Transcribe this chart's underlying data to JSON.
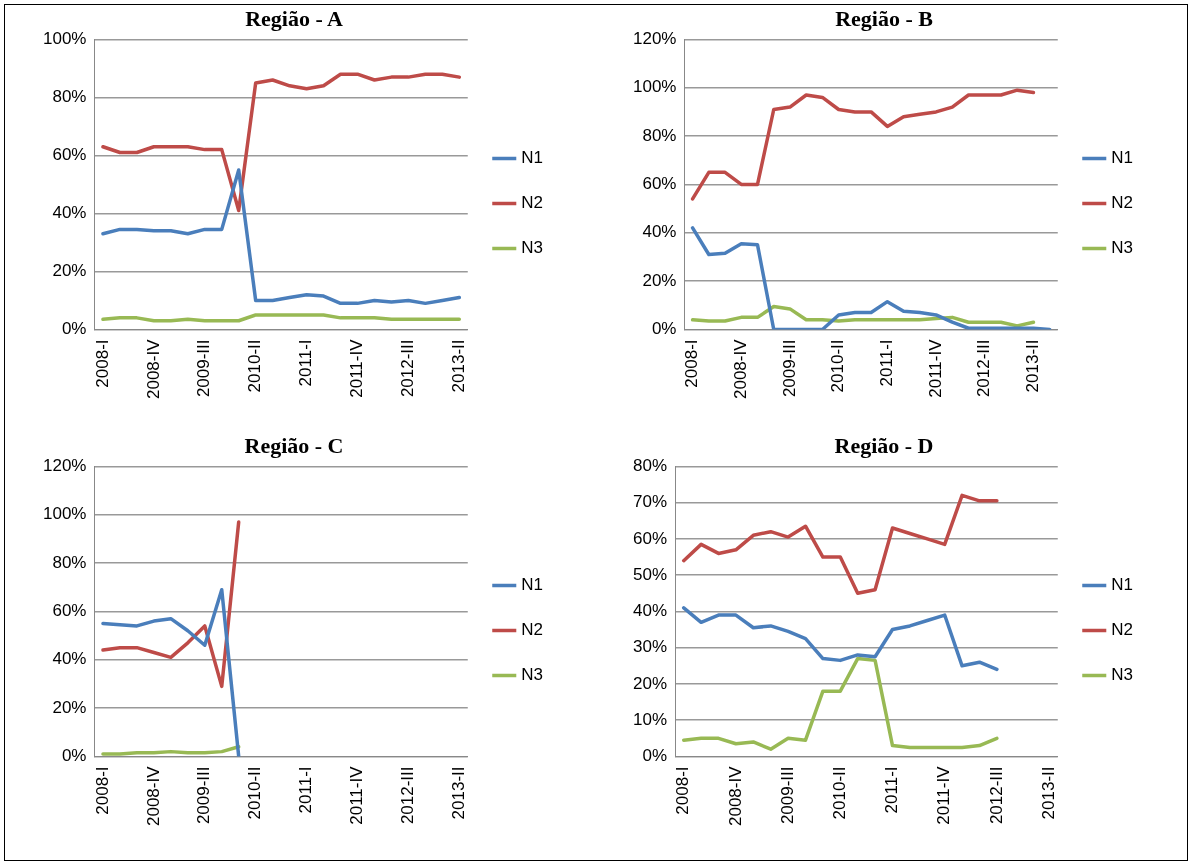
{
  "chart_data": [
    {
      "type": "line",
      "title": "Região - A",
      "categories": [
        "2008-I",
        null,
        null,
        "2008-IV",
        null,
        null,
        "2009-III",
        null,
        null,
        "2010-II",
        null,
        null,
        "2011-I",
        null,
        null,
        "2011-IV",
        null,
        null,
        "2012-III",
        null,
        null,
        "2013-II"
      ],
      "ylim": [
        0,
        100
      ],
      "yticks": [
        {
          "value": 0,
          "label": "0%"
        },
        {
          "value": 20,
          "label": "20%"
        },
        {
          "value": 40,
          "label": "40%"
        },
        {
          "value": 60,
          "label": "60%"
        },
        {
          "value": 80,
          "label": "80%"
        },
        {
          "value": 100,
          "label": "100%"
        }
      ],
      "grid": "y",
      "legend": "right",
      "marker": "none",
      "line_style": "solid",
      "series": [
        {
          "name": "N1",
          "color": "#4a7ebb",
          "values": [
            33,
            34.5,
            34.5,
            34,
            34,
            33,
            34.5,
            34.5,
            55,
            10,
            10,
            11,
            12,
            11.5,
            9,
            9,
            10,
            9.5,
            10,
            9,
            10,
            11
          ]
        },
        {
          "name": "N2",
          "color": "#be4b48",
          "values": [
            63,
            61,
            61,
            63,
            63,
            63,
            62,
            62,
            41,
            85,
            86,
            84,
            83,
            84,
            88,
            88,
            86,
            87,
            87,
            88,
            88,
            87
          ]
        },
        {
          "name": "N3",
          "color": "#98b954",
          "values": [
            3.5,
            4,
            4,
            3,
            3,
            3.5,
            3,
            3,
            3,
            5,
            5,
            5,
            5,
            5,
            4,
            4,
            4,
            3.5,
            3.5,
            3.5,
            3.5,
            3.5
          ]
        }
      ]
    },
    {
      "type": "line",
      "title": "Região - B",
      "categories": [
        "2008-I",
        null,
        null,
        "2008-IV",
        null,
        null,
        "2009-III",
        null,
        null,
        "2010-II",
        null,
        null,
        "2011-I",
        null,
        null,
        "2011-IV",
        null,
        null,
        "2012-III",
        null,
        null,
        "2013-II",
        null
      ],
      "ylim": [
        0,
        120
      ],
      "yticks": [
        {
          "value": 0,
          "label": "0%"
        },
        {
          "value": 20,
          "label": "20%"
        },
        {
          "value": 40,
          "label": "40%"
        },
        {
          "value": 60,
          "label": "60%"
        },
        {
          "value": 80,
          "label": "80%"
        },
        {
          "value": 100,
          "label": "100%"
        },
        {
          "value": 120,
          "label": "120%"
        }
      ],
      "grid": "y",
      "legend": "right",
      "marker": "none",
      "line_style": "solid",
      "series": [
        {
          "name": "N1",
          "color": "#4a7ebb",
          "values": [
            42,
            31,
            31.5,
            35.5,
            35,
            0,
            0,
            0,
            0,
            6,
            7,
            7,
            11.5,
            7.5,
            7,
            6,
            3,
            0.5,
            0.5,
            0.5,
            0.5,
            0.5,
            0
          ]
        },
        {
          "name": "N2",
          "color": "#be4b48",
          "values": [
            54,
            65,
            65,
            60,
            60,
            91,
            92,
            97,
            96,
            91,
            90,
            90,
            84,
            88,
            89,
            90,
            92,
            97,
            97,
            97,
            99,
            98,
            null
          ]
        },
        {
          "name": "N3",
          "color": "#98b954",
          "values": [
            4,
            3.5,
            3.5,
            5,
            5,
            9.5,
            8.5,
            4,
            4,
            3.5,
            4,
            4,
            4,
            4,
            4,
            4.5,
            5,
            3,
            3,
            3,
            1.5,
            3,
            null
          ]
        }
      ]
    },
    {
      "type": "line",
      "title": "Região - C",
      "categories": [
        "2008-I",
        null,
        null,
        "2008-IV",
        null,
        null,
        "2009-III",
        null,
        null,
        "2010-II",
        null,
        null,
        "2011-I",
        null,
        null,
        "2011-IV",
        null,
        null,
        "2012-III",
        null,
        null,
        "2013-II"
      ],
      "ylim": [
        0,
        120
      ],
      "yticks": [
        {
          "value": 0,
          "label": "0%"
        },
        {
          "value": 20,
          "label": "20%"
        },
        {
          "value": 40,
          "label": "40%"
        },
        {
          "value": 60,
          "label": "60%"
        },
        {
          "value": 80,
          "label": "80%"
        },
        {
          "value": 100,
          "label": "100%"
        },
        {
          "value": 120,
          "label": "120%"
        }
      ],
      "grid": "y",
      "legend": "right",
      "marker": "none",
      "line_style": "solid",
      "series": [
        {
          "name": "N1",
          "color": "#4a7ebb",
          "values": [
            55,
            54.5,
            54,
            56,
            57,
            52,
            46,
            69,
            0,
            null,
            null,
            null,
            null,
            null,
            null,
            null,
            null,
            null,
            null,
            null,
            null,
            null
          ]
        },
        {
          "name": "N2",
          "color": "#be4b48",
          "values": [
            44,
            45,
            45,
            43,
            41,
            47,
            54,
            29,
            97,
            null,
            null,
            null,
            null,
            null,
            null,
            null,
            null,
            null,
            null,
            null,
            null,
            null
          ]
        },
        {
          "name": "N3",
          "color": "#98b954",
          "values": [
            1,
            1,
            1.5,
            1.5,
            2,
            1.5,
            1.5,
            2,
            4,
            null,
            null,
            null,
            null,
            null,
            null,
            null,
            null,
            null,
            null,
            null,
            null,
            null
          ]
        }
      ]
    },
    {
      "type": "line",
      "title": "Região - D",
      "categories": [
        "2008-I",
        null,
        null,
        "2008-IV",
        null,
        null,
        "2009-III",
        null,
        null,
        "2010-II",
        null,
        null,
        "2011-I",
        null,
        null,
        "2011-IV",
        null,
        null,
        "2012-III",
        null,
        null,
        "2013-II"
      ],
      "ylim": [
        0,
        80
      ],
      "yticks": [
        {
          "value": 0,
          "label": "0%"
        },
        {
          "value": 10,
          "label": "10%"
        },
        {
          "value": 20,
          "label": "20%"
        },
        {
          "value": 30,
          "label": "30%"
        },
        {
          "value": 40,
          "label": "40%"
        },
        {
          "value": 50,
          "label": "50%"
        },
        {
          "value": 60,
          "label": "60%"
        },
        {
          "value": 70,
          "label": "70%"
        },
        {
          "value": 80,
          "label": "80%"
        }
      ],
      "grid": "y",
      "legend": "right",
      "marker": "none",
      "line_style": "solid",
      "series": [
        {
          "name": "N1",
          "color": "#4a7ebb",
          "values": [
            41,
            37,
            39,
            39,
            35.5,
            36,
            34.5,
            32.5,
            27,
            26.5,
            28,
            27.5,
            35,
            36,
            37.5,
            39,
            25,
            26,
            24,
            null,
            null,
            null
          ]
        },
        {
          "name": "N2",
          "color": "#be4b48",
          "values": [
            54,
            58.5,
            56,
            57,
            61,
            62,
            60.5,
            63.5,
            55,
            55,
            45,
            46,
            63,
            61.5,
            60,
            58.5,
            72,
            70.5,
            70.5,
            null,
            null,
            null
          ]
        },
        {
          "name": "N3",
          "color": "#98b954",
          "values": [
            4.5,
            5,
            5,
            3.5,
            4,
            2,
            5,
            4.5,
            18,
            18,
            27,
            26.5,
            3,
            2.5,
            2.5,
            2.5,
            2.5,
            3,
            5,
            null,
            null,
            null
          ]
        }
      ]
    }
  ]
}
